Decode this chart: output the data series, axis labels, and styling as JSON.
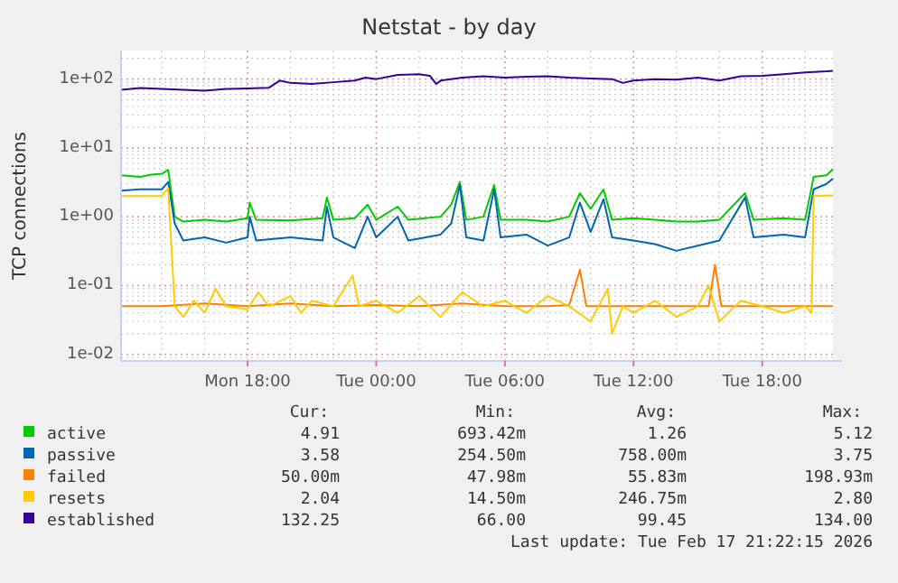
{
  "chart_data": {
    "type": "line",
    "title": "Netstat - by day",
    "ylabel": "TCP connections",
    "log": "y",
    "grid": true,
    "legend": "bottom",
    "marker": "none",
    "line_style": "solid",
    "xlim": [
      "2026-02-16T12:06",
      "2026-02-17T21:18"
    ],
    "xticks": [
      {
        "value": "2026-02-16T18:00",
        "label": "Mon 18:00"
      },
      {
        "value": "2026-02-17T00:00",
        "label": "Tue 00:00"
      },
      {
        "value": "2026-02-17T06:00",
        "label": "Tue 06:00"
      },
      {
        "value": "2026-02-17T12:00",
        "label": "Tue 12:00"
      },
      {
        "value": "2026-02-17T18:00",
        "label": "Tue 18:00"
      }
    ],
    "ylim": [
      0.008,
      260
    ],
    "yticks": [
      {
        "value": 0.01,
        "label": "1e-02"
      },
      {
        "value": 0.1,
        "label": "1e-01"
      },
      {
        "value": 1,
        "label": "1e+00"
      },
      {
        "value": 10,
        "label": "1e+01"
      },
      {
        "value": 100,
        "label": "1e+02"
      }
    ],
    "series": [
      {
        "name": "active",
        "color": "#00cc00",
        "x": [
          "2026-02-16T12:06",
          "2026-02-16T13:00",
          "2026-02-16T13:30",
          "2026-02-16T14:00",
          "2026-02-16T14:18",
          "2026-02-16T14:36",
          "2026-02-16T15:00",
          "2026-02-16T16:00",
          "2026-02-16T17:00",
          "2026-02-16T18:00",
          "2026-02-16T18:06",
          "2026-02-16T18:24",
          "2026-02-16T20:00",
          "2026-02-16T21:30",
          "2026-02-16T21:42",
          "2026-02-16T22:00",
          "2026-02-16T23:00",
          "2026-02-16T23:36",
          "2026-02-17T00:00",
          "2026-02-17T01:00",
          "2026-02-17T01:30",
          "2026-02-17T03:00",
          "2026-02-17T03:30",
          "2026-02-17T03:54",
          "2026-02-17T04:12",
          "2026-02-17T05:00",
          "2026-02-17T05:30",
          "2026-02-17T05:48",
          "2026-02-17T07:00",
          "2026-02-17T08:00",
          "2026-02-17T09:00",
          "2026-02-17T09:30",
          "2026-02-17T10:00",
          "2026-02-17T10:36",
          "2026-02-17T11:00",
          "2026-02-17T12:00",
          "2026-02-17T13:00",
          "2026-02-17T14:00",
          "2026-02-17T15:00",
          "2026-02-17T16:00",
          "2026-02-17T17:12",
          "2026-02-17T17:36",
          "2026-02-17T19:00",
          "2026-02-17T20:00",
          "2026-02-17T20:24",
          "2026-02-17T21:00",
          "2026-02-17T21:18"
        ],
        "values": [
          4.0,
          3.8,
          4.1,
          4.2,
          4.8,
          1.0,
          0.85,
          0.9,
          0.85,
          0.95,
          1.6,
          0.9,
          0.88,
          0.95,
          1.9,
          0.9,
          0.95,
          1.5,
          0.9,
          1.4,
          0.9,
          1.0,
          1.5,
          3.2,
          0.9,
          1.0,
          2.9,
          0.9,
          0.9,
          0.85,
          1.0,
          2.2,
          1.3,
          2.5,
          0.9,
          0.95,
          0.9,
          0.85,
          0.85,
          0.9,
          2.2,
          0.9,
          0.95,
          0.9,
          3.8,
          4.0,
          4.91
        ]
      },
      {
        "name": "passive",
        "color": "#0066b3",
        "x": [
          "2026-02-16T12:06",
          "2026-02-16T13:00",
          "2026-02-16T14:00",
          "2026-02-16T14:18",
          "2026-02-16T14:36",
          "2026-02-16T15:00",
          "2026-02-16T16:00",
          "2026-02-16T17:00",
          "2026-02-16T18:00",
          "2026-02-16T18:06",
          "2026-02-16T18:24",
          "2026-02-16T20:00",
          "2026-02-16T21:30",
          "2026-02-16T21:42",
          "2026-02-16T22:00",
          "2026-02-16T23:00",
          "2026-02-16T23:36",
          "2026-02-17T00:00",
          "2026-02-17T01:00",
          "2026-02-17T01:30",
          "2026-02-17T03:00",
          "2026-02-17T03:30",
          "2026-02-17T03:54",
          "2026-02-17T04:12",
          "2026-02-17T05:00",
          "2026-02-17T05:30",
          "2026-02-17T05:48",
          "2026-02-17T07:00",
          "2026-02-17T08:00",
          "2026-02-17T09:00",
          "2026-02-17T09:30",
          "2026-02-17T10:00",
          "2026-02-17T10:36",
          "2026-02-17T11:00",
          "2026-02-17T12:00",
          "2026-02-17T13:00",
          "2026-02-17T14:00",
          "2026-02-17T15:00",
          "2026-02-17T16:00",
          "2026-02-17T17:12",
          "2026-02-17T17:36",
          "2026-02-17T19:00",
          "2026-02-17T20:00",
          "2026-02-17T20:24",
          "2026-02-17T21:00",
          "2026-02-17T21:18"
        ],
        "values": [
          2.4,
          2.5,
          2.5,
          3.2,
          0.8,
          0.45,
          0.5,
          0.42,
          0.5,
          1.0,
          0.45,
          0.5,
          0.45,
          1.4,
          0.5,
          0.35,
          1.0,
          0.5,
          1.0,
          0.45,
          0.55,
          0.8,
          2.9,
          0.5,
          0.45,
          2.5,
          0.5,
          0.55,
          0.38,
          0.5,
          1.6,
          0.6,
          1.8,
          0.5,
          0.45,
          0.4,
          0.32,
          0.38,
          0.45,
          1.9,
          0.5,
          0.55,
          0.5,
          2.5,
          3.0,
          3.58
        ]
      },
      {
        "name": "failed",
        "color": "#ff8000",
        "x": [
          "2026-02-16T12:06",
          "2026-02-16T14:00",
          "2026-02-16T16:00",
          "2026-02-16T18:00",
          "2026-02-16T20:00",
          "2026-02-16T22:00",
          "2026-02-17T00:00",
          "2026-02-17T02:00",
          "2026-02-17T04:00",
          "2026-02-17T06:00",
          "2026-02-17T08:00",
          "2026-02-17T09:00",
          "2026-02-17T09:30",
          "2026-02-17T09:48",
          "2026-02-17T12:00",
          "2026-02-17T14:00",
          "2026-02-17T15:30",
          "2026-02-17T15:48",
          "2026-02-17T16:06",
          "2026-02-17T18:00",
          "2026-02-17T20:00",
          "2026-02-17T21:18"
        ],
        "values": [
          0.05,
          0.05,
          0.055,
          0.05,
          0.055,
          0.05,
          0.052,
          0.05,
          0.055,
          0.05,
          0.05,
          0.052,
          0.17,
          0.05,
          0.05,
          0.05,
          0.05,
          0.2,
          0.05,
          0.05,
          0.05,
          0.05
        ]
      },
      {
        "name": "resets",
        "color": "#ffcc00",
        "x": [
          "2026-02-16T12:06",
          "2026-02-16T14:00",
          "2026-02-16T14:18",
          "2026-02-16T14:36",
          "2026-02-16T15:00",
          "2026-02-16T15:30",
          "2026-02-16T16:00",
          "2026-02-16T16:30",
          "2026-02-16T17:00",
          "2026-02-16T18:00",
          "2026-02-16T18:30",
          "2026-02-16T19:00",
          "2026-02-16T20:00",
          "2026-02-16T20:30",
          "2026-02-16T21:00",
          "2026-02-16T22:00",
          "2026-02-16T22:54",
          "2026-02-16T23:12",
          "2026-02-17T00:00",
          "2026-02-17T01:00",
          "2026-02-17T02:00",
          "2026-02-17T03:00",
          "2026-02-17T04:00",
          "2026-02-17T05:00",
          "2026-02-17T06:00",
          "2026-02-17T07:00",
          "2026-02-17T08:00",
          "2026-02-17T09:00",
          "2026-02-17T10:00",
          "2026-02-17T10:48",
          "2026-02-17T11:00",
          "2026-02-17T11:30",
          "2026-02-17T12:00",
          "2026-02-17T13:00",
          "2026-02-17T14:00",
          "2026-02-17T15:00",
          "2026-02-17T15:30",
          "2026-02-17T16:00",
          "2026-02-17T17:00",
          "2026-02-17T18:00",
          "2026-02-17T19:00",
          "2026-02-17T20:00",
          "2026-02-17T20:18",
          "2026-02-17T20:24",
          "2026-02-17T21:18"
        ],
        "values": [
          2.0,
          2.0,
          2.6,
          0.05,
          0.035,
          0.06,
          0.04,
          0.09,
          0.05,
          0.045,
          0.08,
          0.05,
          0.07,
          0.04,
          0.06,
          0.05,
          0.14,
          0.05,
          0.06,
          0.04,
          0.07,
          0.035,
          0.08,
          0.05,
          0.06,
          0.04,
          0.07,
          0.05,
          0.03,
          0.09,
          0.02,
          0.05,
          0.04,
          0.06,
          0.035,
          0.05,
          0.1,
          0.03,
          0.06,
          0.05,
          0.04,
          0.05,
          0.04,
          2.0,
          2.04
        ]
      },
      {
        "name": "established",
        "color": "#330099",
        "x": [
          "2026-02-16T12:06",
          "2026-02-16T13:00",
          "2026-02-16T14:00",
          "2026-02-16T15:00",
          "2026-02-16T16:00",
          "2026-02-16T17:00",
          "2026-02-16T18:00",
          "2026-02-16T19:00",
          "2026-02-16T19:30",
          "2026-02-16T20:00",
          "2026-02-16T21:00",
          "2026-02-16T22:00",
          "2026-02-16T23:00",
          "2026-02-16T23:30",
          "2026-02-17T00:00",
          "2026-02-17T01:00",
          "2026-02-17T02:00",
          "2026-02-17T02:30",
          "2026-02-17T02:48",
          "2026-02-17T03:00",
          "2026-02-17T04:00",
          "2026-02-17T05:00",
          "2026-02-17T06:00",
          "2026-02-17T07:00",
          "2026-02-17T08:00",
          "2026-02-17T09:00",
          "2026-02-17T10:00",
          "2026-02-17T11:00",
          "2026-02-17T11:30",
          "2026-02-17T12:00",
          "2026-02-17T13:00",
          "2026-02-17T14:00",
          "2026-02-17T15:00",
          "2026-02-17T16:00",
          "2026-02-17T17:00",
          "2026-02-17T18:00",
          "2026-02-17T19:00",
          "2026-02-17T20:00",
          "2026-02-17T21:00",
          "2026-02-17T21:18"
        ],
        "values": [
          70,
          74,
          72,
          70,
          68,
          72,
          73,
          75,
          95,
          88,
          85,
          90,
          95,
          105,
          100,
          115,
          118,
          112,
          85,
          95,
          105,
          110,
          105,
          108,
          110,
          105,
          102,
          100,
          88,
          95,
          100,
          98,
          105,
          95,
          110,
          112,
          118,
          125,
          130,
          132.25
        ]
      }
    ],
    "annotations": [
      "Cur:",
      "Min:",
      "Avg:",
      "Max:",
      "4.91",
      "693.42m",
      "1.26",
      "5.12",
      "3.58",
      "254.50m",
      "758.00m",
      "3.75",
      "50.00m",
      "47.98m",
      "55.83m",
      "198.93m",
      "2.04",
      "14.50m",
      "246.75m",
      "2.80",
      "132.25",
      "66.00",
      "99.45",
      "134.00",
      "Last update: Tue Feb 17 21:22:15 2026"
    ]
  }
}
